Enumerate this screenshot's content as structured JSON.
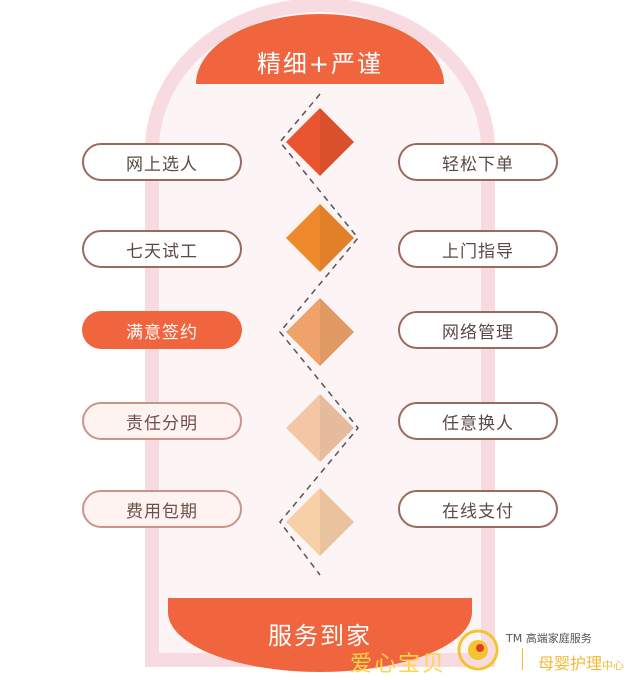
{
  "top_banner": "精细+严谨",
  "bottom_banner": "服务到家",
  "left_items": [
    "网上选人",
    "七天试工",
    "满意签约",
    "责任分明",
    "费用包期"
  ],
  "right_items": [
    "轻松下单",
    "上门指导",
    "网络管理",
    "任意换人",
    "在线支付"
  ],
  "colors": {
    "accent": "#f0643e",
    "frame": "#f7dbe0",
    "diamonds": [
      "#e8552e",
      "#ee8a2c",
      "#efa36a",
      "#f5c6a6",
      "#f7d0a8"
    ]
  },
  "watermark": {
    "brand": "爱心宝贝",
    "tm": "TM 高端家庭服务",
    "service": "母婴护理",
    "service_suffix": "中心"
  }
}
